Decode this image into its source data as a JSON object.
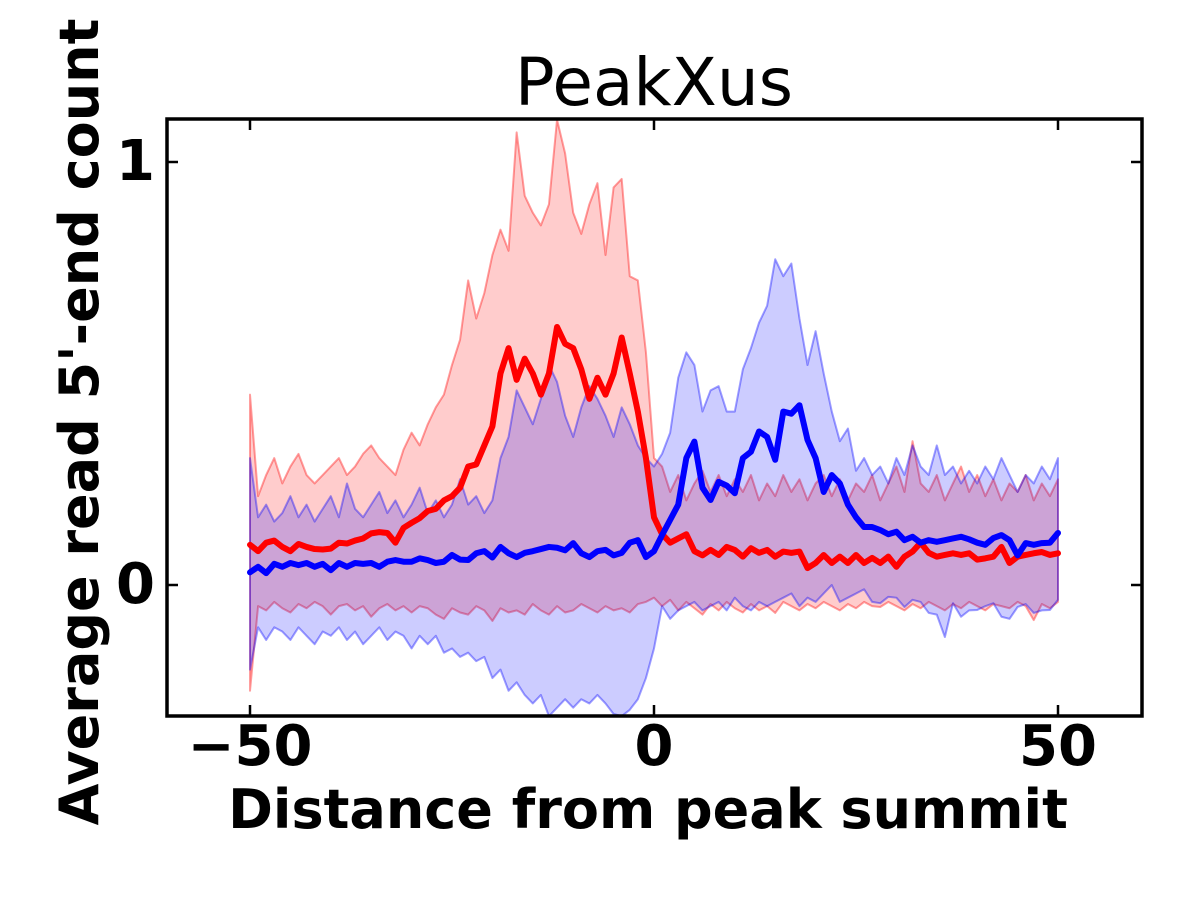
{
  "chart_data": {
    "type": "line",
    "title": "PeakXus",
    "xlabel": "Distance from peak summit",
    "ylabel": "Average read 5'-end count",
    "xlim": [
      -60.3,
      60.4
    ],
    "ylim": [
      -0.31,
      1.1
    ],
    "xticks": [
      -50,
      0,
      50
    ],
    "xticklabels": [
      "−50",
      "0",
      "50"
    ],
    "yticks": [
      1,
      0
    ],
    "yticklabels": [
      "1",
      "0"
    ],
    "grid": false,
    "legend": "none",
    "x_start": -50,
    "x_step": 1,
    "series": [
      {
        "name": "red-profile",
        "color": "#ff0000",
        "band_opacity": 0.2,
        "mean": [
          0.095,
          0.08,
          0.1,
          0.105,
          0.09,
          0.08,
          0.097,
          0.09,
          0.085,
          0.084,
          0.086,
          0.1,
          0.098,
          0.105,
          0.11,
          0.122,
          0.125,
          0.123,
          0.1,
          0.135,
          0.147,
          0.158,
          0.175,
          0.18,
          0.2,
          0.21,
          0.23,
          0.28,
          0.285,
          0.33,
          0.375,
          0.5,
          0.56,
          0.485,
          0.535,
          0.5,
          0.45,
          0.5,
          0.61,
          0.57,
          0.56,
          0.51,
          0.44,
          0.49,
          0.45,
          0.5,
          0.585,
          0.5,
          0.41,
          0.3,
          0.16,
          0.12,
          0.1,
          0.11,
          0.12,
          0.08,
          0.07,
          0.083,
          0.071,
          0.09,
          0.083,
          0.067,
          0.087,
          0.076,
          0.083,
          0.067,
          0.079,
          0.076,
          0.079,
          0.04,
          0.052,
          0.071,
          0.052,
          0.067,
          0.052,
          0.071,
          0.052,
          0.064,
          0.052,
          0.067,
          0.043,
          0.067,
          0.079,
          0.1,
          0.076,
          0.067,
          0.071,
          0.075,
          0.071,
          0.075,
          0.06,
          0.063,
          0.067,
          0.09,
          0.052,
          0.067,
          0.071,
          0.075,
          0.078,
          0.071,
          0.075
        ],
        "band_low": [
          -0.25,
          -0.05,
          -0.06,
          -0.04,
          -0.055,
          -0.065,
          -0.045,
          -0.055,
          -0.04,
          -0.05,
          -0.07,
          -0.05,
          -0.045,
          -0.06,
          -0.05,
          -0.075,
          -0.055,
          -0.045,
          -0.06,
          -0.05,
          -0.065,
          -0.05,
          -0.055,
          -0.07,
          -0.08,
          -0.055,
          -0.065,
          -0.07,
          -0.05,
          -0.06,
          -0.085,
          -0.055,
          -0.065,
          -0.06,
          -0.07,
          -0.045,
          -0.06,
          -0.07,
          -0.05,
          -0.065,
          -0.06,
          -0.045,
          -0.055,
          -0.065,
          -0.05,
          -0.06,
          -0.055,
          -0.065,
          -0.045,
          -0.04,
          -0.03,
          -0.05,
          -0.035,
          -0.06,
          -0.04,
          -0.055,
          -0.07,
          -0.045,
          -0.06,
          -0.04,
          -0.055,
          -0.065,
          -0.045,
          -0.06,
          -0.05,
          -0.066,
          -0.04,
          -0.05,
          -0.06,
          -0.045,
          -0.055,
          -0.04,
          -0.05,
          -0.06,
          -0.045,
          -0.055,
          -0.04,
          -0.05,
          -0.052,
          -0.04,
          -0.05,
          -0.06,
          -0.045,
          -0.055,
          -0.04,
          -0.05,
          -0.06,
          -0.045,
          -0.055,
          -0.04,
          -0.05,
          -0.06,
          -0.045,
          -0.05,
          -0.055,
          -0.04,
          -0.05,
          -0.083,
          -0.045,
          -0.055,
          -0.04
        ],
        "band_high": [
          0.45,
          0.21,
          0.26,
          0.3,
          0.24,
          0.28,
          0.31,
          0.26,
          0.24,
          0.26,
          0.28,
          0.3,
          0.26,
          0.28,
          0.31,
          0.33,
          0.3,
          0.28,
          0.26,
          0.32,
          0.36,
          0.33,
          0.38,
          0.42,
          0.45,
          0.52,
          0.58,
          0.72,
          0.63,
          0.69,
          0.78,
          0.84,
          0.79,
          1.07,
          0.92,
          0.88,
          0.85,
          0.9,
          1.1,
          1.02,
          0.88,
          0.83,
          0.9,
          0.95,
          0.78,
          0.94,
          0.96,
          0.73,
          0.72,
          0.55,
          0.3,
          0.28,
          0.22,
          0.26,
          0.2,
          0.24,
          0.27,
          0.22,
          0.26,
          0.21,
          0.25,
          0.22,
          0.26,
          0.2,
          0.24,
          0.21,
          0.26,
          0.22,
          0.25,
          0.2,
          0.24,
          0.26,
          0.21,
          0.25,
          0.2,
          0.24,
          0.22,
          0.26,
          0.2,
          0.24,
          0.28,
          0.22,
          0.34,
          0.24,
          0.22,
          0.26,
          0.2,
          0.24,
          0.28,
          0.22,
          0.26,
          0.21,
          0.25,
          0.2,
          0.24,
          0.22,
          0.26,
          0.2,
          0.24,
          0.21,
          0.25
        ]
      },
      {
        "name": "blue-profile",
        "color": "#0000ff",
        "band_opacity": 0.2,
        "mean": [
          0.03,
          0.043,
          0.028,
          0.05,
          0.043,
          0.052,
          0.047,
          0.052,
          0.043,
          0.05,
          0.035,
          0.052,
          0.043,
          0.052,
          0.05,
          0.052,
          0.043,
          0.055,
          0.059,
          0.055,
          0.055,
          0.063,
          0.059,
          0.052,
          0.055,
          0.071,
          0.06,
          0.059,
          0.075,
          0.08,
          0.065,
          0.09,
          0.075,
          0.066,
          0.076,
          0.08,
          0.085,
          0.09,
          0.088,
          0.082,
          0.099,
          0.075,
          0.066,
          0.08,
          0.083,
          0.07,
          0.076,
          0.1,
          0.106,
          0.066,
          0.08,
          0.118,
          0.154,
          0.19,
          0.3,
          0.339,
          0.23,
          0.201,
          0.244,
          0.235,
          0.217,
          0.3,
          0.315,
          0.363,
          0.35,
          0.296,
          0.41,
          0.405,
          0.425,
          0.343,
          0.3,
          0.22,
          0.26,
          0.24,
          0.19,
          0.16,
          0.137,
          0.137,
          0.13,
          0.12,
          0.126,
          0.106,
          0.114,
          0.1,
          0.106,
          0.102,
          0.106,
          0.11,
          0.114,
          0.108,
          0.1,
          0.095,
          0.111,
          0.118,
          0.106,
          0.07,
          0.099,
          0.095,
          0.099,
          0.1,
          0.123
        ],
        "band_low": [
          -0.2,
          -0.1,
          -0.13,
          -0.1,
          -0.11,
          -0.13,
          -0.1,
          -0.12,
          -0.14,
          -0.11,
          -0.12,
          -0.1,
          -0.13,
          -0.11,
          -0.14,
          -0.12,
          -0.1,
          -0.13,
          -0.11,
          -0.12,
          -0.15,
          -0.12,
          -0.14,
          -0.12,
          -0.16,
          -0.15,
          -0.17,
          -0.16,
          -0.18,
          -0.17,
          -0.22,
          -0.2,
          -0.25,
          -0.23,
          -0.26,
          -0.28,
          -0.26,
          -0.31,
          -0.29,
          -0.27,
          -0.29,
          -0.27,
          -0.28,
          -0.26,
          -0.28,
          -0.305,
          -0.31,
          -0.295,
          -0.27,
          -0.22,
          -0.15,
          -0.05,
          -0.08,
          -0.06,
          -0.05,
          -0.04,
          -0.06,
          -0.05,
          -0.04,
          -0.06,
          -0.03,
          -0.05,
          -0.06,
          -0.04,
          -0.05,
          -0.04,
          -0.03,
          -0.02,
          -0.05,
          -0.03,
          -0.04,
          -0.02,
          0.0,
          -0.04,
          -0.03,
          -0.02,
          -0.01,
          -0.04,
          -0.043,
          -0.028,
          -0.03,
          -0.052,
          -0.035,
          -0.04,
          -0.066,
          -0.07,
          -0.123,
          -0.043,
          -0.075,
          -0.06,
          -0.059,
          -0.05,
          -0.043,
          -0.075,
          -0.08,
          -0.052,
          -0.045,
          -0.066,
          -0.06,
          -0.059,
          -0.035
        ],
        "band_high": [
          0.3,
          0.16,
          0.19,
          0.15,
          0.17,
          0.21,
          0.16,
          0.19,
          0.15,
          0.18,
          0.21,
          0.16,
          0.24,
          0.18,
          0.16,
          0.19,
          0.22,
          0.17,
          0.2,
          0.16,
          0.19,
          0.23,
          0.17,
          0.2,
          0.16,
          0.19,
          0.25,
          0.19,
          0.21,
          0.17,
          0.2,
          0.3,
          0.35,
          0.46,
          0.42,
          0.38,
          0.44,
          0.52,
          0.48,
          0.4,
          0.35,
          0.42,
          0.47,
          0.44,
          0.4,
          0.35,
          0.42,
          0.38,
          0.33,
          0.3,
          0.28,
          0.31,
          0.36,
          0.49,
          0.55,
          0.52,
          0.41,
          0.46,
          0.47,
          0.41,
          0.41,
          0.51,
          0.56,
          0.62,
          0.66,
          0.77,
          0.73,
          0.76,
          0.63,
          0.52,
          0.6,
          0.5,
          0.41,
          0.34,
          0.37,
          0.27,
          0.3,
          0.26,
          0.28,
          0.24,
          0.3,
          0.26,
          0.33,
          0.28,
          0.26,
          0.33,
          0.26,
          0.28,
          0.24,
          0.27,
          0.24,
          0.28,
          0.25,
          0.3,
          0.26,
          0.22,
          0.26,
          0.24,
          0.28,
          0.25,
          0.3
        ]
      }
    ]
  }
}
